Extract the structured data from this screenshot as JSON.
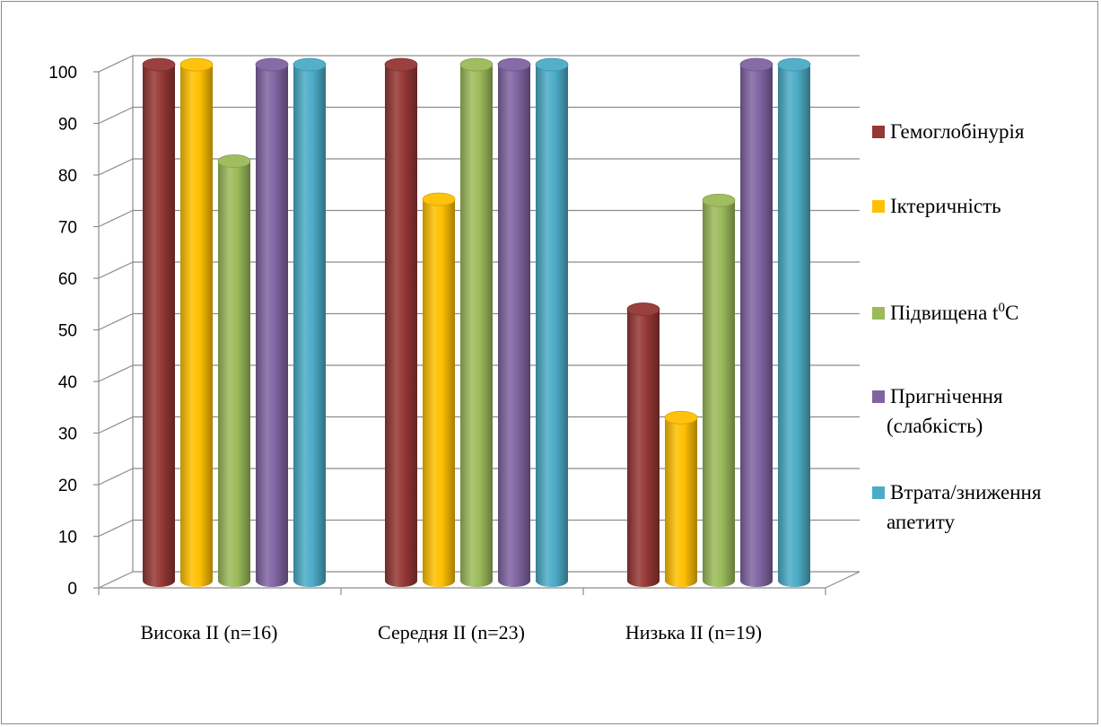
{
  "chart_data": {
    "type": "bar",
    "categories": [
      "Висока II (n=16)",
      "Середня II (n=23)",
      "Низька II (n=19)"
    ],
    "series": [
      {
        "name": "Гемоглобінурія",
        "color": "#953735",
        "values": [
          100,
          100,
          52.6
        ]
      },
      {
        "name": "Іктеричність",
        "color": "#ffc000",
        "values": [
          100,
          73.9,
          31.6
        ]
      },
      {
        "name": "Підвищена t⁰C",
        "color": "#9bbb59",
        "values": [
          81.3,
          100,
          73.7
        ]
      },
      {
        "name": "Пригнічення (слабкість)",
        "color": "#8064a2",
        "values": [
          100,
          100,
          100
        ]
      },
      {
        "name": "Втрата/зниження апетиту",
        "color": "#4bacc6",
        "values": [
          100,
          100,
          100
        ]
      }
    ],
    "legend": {
      "position": "right",
      "lines": [
        [
          "Гемоглобінурія"
        ],
        [
          "Іктеричність"
        ],
        [
          "Підвищена t",
          "0",
          "C"
        ],
        [
          "Пригнічення",
          "(слабкість)"
        ],
        [
          "Втрата/зниження",
          "апетиту"
        ]
      ]
    },
    "yticks": [
      "0",
      "10",
      "20",
      "30",
      "40",
      "50",
      "60",
      "70",
      "80",
      "90",
      "100"
    ],
    "ylim": [
      0,
      100
    ],
    "grid": true,
    "style": "3d-cylinder"
  }
}
